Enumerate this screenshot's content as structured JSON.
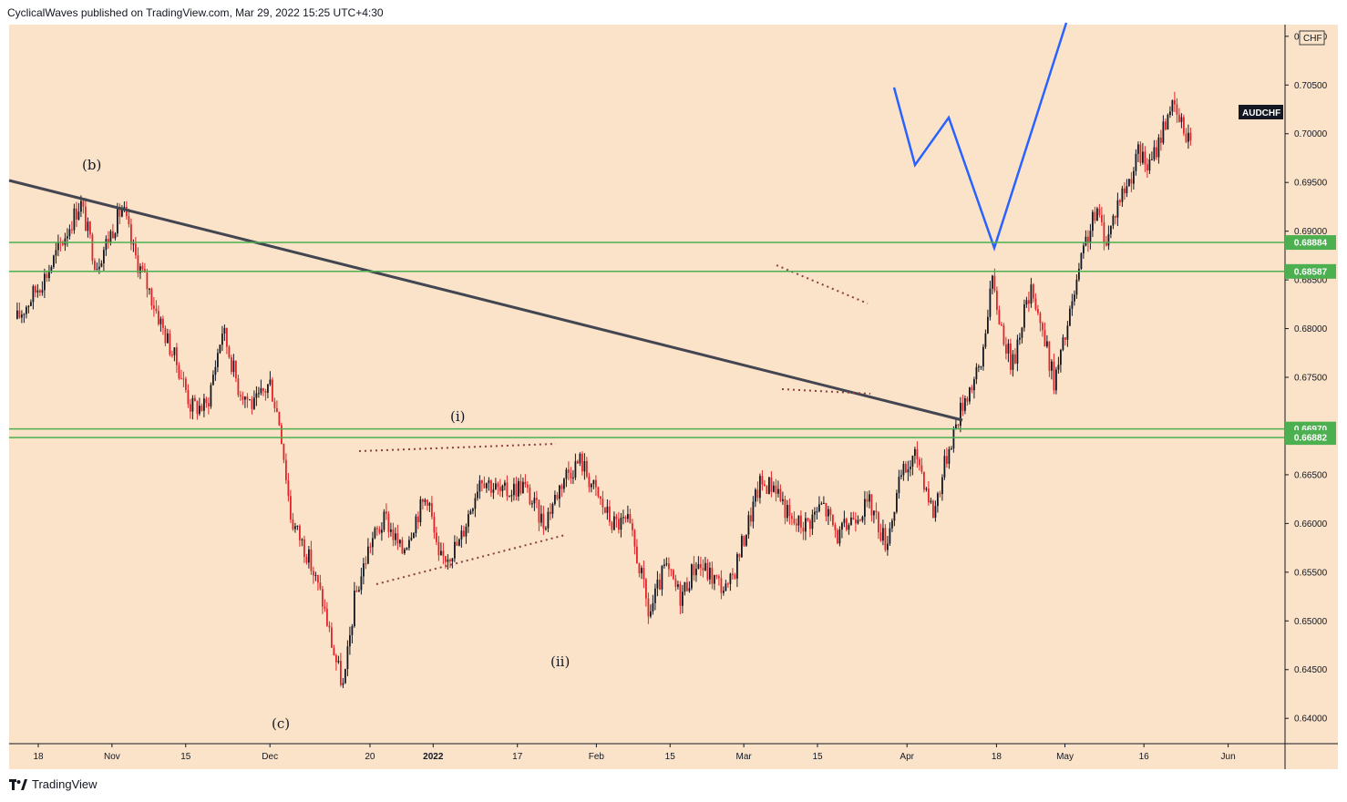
{
  "header": {
    "publisher_line": "CyclicalWaves published on TradingView.com, Mar 29, 2022 15:25 UTC+4:30"
  },
  "footer": {
    "brand": "TradingView"
  },
  "colors": {
    "chart_bg": "#fae3c9",
    "candle_up": "#131722",
    "candle_down": "#e0242a",
    "support_line": "#4caf50",
    "trendline": "#434651",
    "projection": "#2962ff",
    "dotted": "#8d3f3f"
  },
  "chart_data": {
    "type": "candlestick",
    "symbol": "AUDCHF",
    "currency": "CHF",
    "x_tick_labels": [
      "18",
      "Nov",
      "15",
      "Dec",
      "20",
      "2022",
      "17",
      "Feb",
      "15",
      "Mar",
      "15",
      "Apr",
      "18",
      "May",
      "16",
      "Jun"
    ],
    "y_tick_labels": [
      "0.71000",
      "0.70500",
      "0.70000",
      "0.69500",
      "0.69000",
      "0.68500",
      "0.68000",
      "0.67500",
      "0.67000",
      "0.66500",
      "0.66000",
      "0.65500",
      "0.65000",
      "0.64500",
      "0.64000"
    ],
    "ylim": [
      0.6374,
      0.7112
    ],
    "horizontal_levels": [
      {
        "label": "0.68884",
        "value": 0.68884
      },
      {
        "label": "0.68587",
        "value": 0.68587
      },
      {
        "label": "0.66970",
        "value": 0.6697
      },
      {
        "label": "0.66882",
        "value": 0.66882
      }
    ],
    "wave_labels": [
      "(b)",
      "(c)",
      "(i)",
      "(ii)"
    ],
    "price_path": [
      {
        "date": "2021-10-14",
        "price": 0.681
      },
      {
        "date": "2021-10-20",
        "price": 0.686
      },
      {
        "date": "2021-10-26",
        "price": 0.693
      },
      {
        "date": "2021-10-29",
        "price": 0.6865
      },
      {
        "date": "2021-11-03",
        "price": 0.6925
      },
      {
        "date": "2021-11-05",
        "price": 0.688
      },
      {
        "date": "2021-11-08",
        "price": 0.684
      },
      {
        "date": "2021-11-11",
        "price": 0.6795
      },
      {
        "date": "2021-11-14",
        "price": 0.6755
      },
      {
        "date": "2021-11-16",
        "price": 0.672
      },
      {
        "date": "2021-11-19",
        "price": 0.672
      },
      {
        "date": "2021-11-22",
        "price": 0.68
      },
      {
        "date": "2021-11-25",
        "price": 0.674
      },
      {
        "date": "2021-11-28",
        "price": 0.672
      },
      {
        "date": "2021-12-01",
        "price": 0.6745
      },
      {
        "date": "2021-12-03",
        "price": 0.67
      },
      {
        "date": "2021-12-05",
        "price": 0.6605
      },
      {
        "date": "2021-12-08",
        "price": 0.657
      },
      {
        "date": "2021-12-11",
        "price": 0.652
      },
      {
        "date": "2021-12-13",
        "price": 0.647
      },
      {
        "date": "2021-12-15",
        "price": 0.643
      },
      {
        "date": "2021-12-17",
        "price": 0.652
      },
      {
        "date": "2021-12-20",
        "price": 0.658
      },
      {
        "date": "2021-12-23",
        "price": 0.6605
      },
      {
        "date": "2021-12-26",
        "price": 0.657
      },
      {
        "date": "2021-12-29",
        "price": 0.661
      },
      {
        "date": "2021-12-31",
        "price": 0.663
      },
      {
        "date": "2022-01-02",
        "price": 0.656
      },
      {
        "date": "2022-01-06",
        "price": 0.658
      },
      {
        "date": "2022-01-10",
        "price": 0.665
      },
      {
        "date": "2022-01-14",
        "price": 0.663
      },
      {
        "date": "2022-01-18",
        "price": 0.664
      },
      {
        "date": "2022-01-22",
        "price": 0.66
      },
      {
        "date": "2022-01-26",
        "price": 0.665
      },
      {
        "date": "2022-01-29",
        "price": 0.6665
      },
      {
        "date": "2022-02-01",
        "price": 0.663
      },
      {
        "date": "2022-02-04",
        "price": 0.66
      },
      {
        "date": "2022-02-07",
        "price": 0.66
      },
      {
        "date": "2022-02-09",
        "price": 0.656
      },
      {
        "date": "2022-02-11",
        "price": 0.6505
      },
      {
        "date": "2022-02-14",
        "price": 0.6555
      },
      {
        "date": "2022-02-17",
        "price": 0.6525
      },
      {
        "date": "2022-02-20",
        "price": 0.656
      },
      {
        "date": "2022-02-23",
        "price": 0.6545
      },
      {
        "date": "2022-02-26",
        "price": 0.653
      },
      {
        "date": "2022-03-01",
        "price": 0.6585
      },
      {
        "date": "2022-03-04",
        "price": 0.664
      },
      {
        "date": "2022-03-07",
        "price": 0.664
      },
      {
        "date": "2022-03-10",
        "price": 0.66
      },
      {
        "date": "2022-03-13",
        "price": 0.66
      },
      {
        "date": "2022-03-16",
        "price": 0.662
      },
      {
        "date": "2022-03-19",
        "price": 0.6585
      },
      {
        "date": "2022-03-22",
        "price": 0.661
      },
      {
        "date": "2022-03-25",
        "price": 0.662
      },
      {
        "date": "2022-03-28",
        "price": 0.658
      },
      {
        "date": "2022-03-31",
        "price": 0.665
      },
      {
        "date": "2022-04-03",
        "price": 0.667
      },
      {
        "date": "2022-04-06",
        "price": 0.661
      },
      {
        "date": "2022-04-09",
        "price": 0.668
      },
      {
        "date": "2022-04-12",
        "price": 0.673
      },
      {
        "date": "2022-04-15",
        "price": 0.676
      },
      {
        "date": "2022-04-17",
        "price": 0.685
      },
      {
        "date": "2022-04-19",
        "price": 0.68
      },
      {
        "date": "2022-04-21",
        "price": 0.676
      },
      {
        "date": "2022-04-23",
        "price": 0.6815
      },
      {
        "date": "2022-04-25",
        "price": 0.684
      },
      {
        "date": "2022-04-27",
        "price": 0.679
      },
      {
        "date": "2022-04-29",
        "price": 0.6745
      },
      {
        "date": "2022-05-01",
        "price": 0.679
      },
      {
        "date": "2022-05-03",
        "price": 0.684
      },
      {
        "date": "2022-05-05",
        "price": 0.689
      },
      {
        "date": "2022-05-07",
        "price": 0.692
      },
      {
        "date": "2022-05-09",
        "price": 0.689
      },
      {
        "date": "2022-05-11",
        "price": 0.693
      },
      {
        "date": "2022-05-13",
        "price": 0.695
      },
      {
        "date": "2022-05-15",
        "price": 0.698
      },
      {
        "date": "2022-05-17",
        "price": 0.6965
      },
      {
        "date": "2022-05-19",
        "price": 0.6995
      },
      {
        "date": "2022-05-21",
        "price": 0.703
      },
      {
        "date": "2022-05-23",
        "price": 0.701
      },
      {
        "date": "2022-05-25",
        "price": 0.6995
      }
    ]
  },
  "legend_tags": {
    "symbol_tag": "AUDCHF",
    "currency_tag": "CHF"
  }
}
